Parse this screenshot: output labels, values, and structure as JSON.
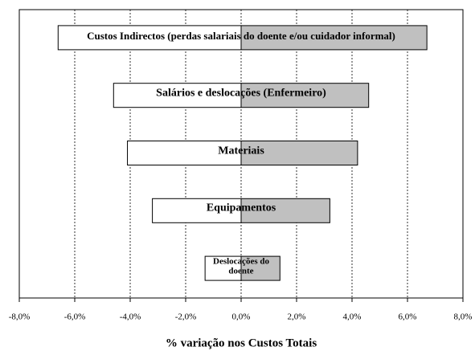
{
  "chart_data": {
    "type": "tornado",
    "categories": [
      "Custos Indirectos (perdas salariais do doente e/ou cuidador informal)",
      "Salários e deslocações (Enfermeiro)",
      "Materiais",
      "Equipamentos",
      "Deslocações do doente"
    ],
    "series": [
      {
        "color": "#ffffff",
        "values": [
          -6.6,
          -4.6,
          -4.1,
          -3.2,
          -1.3
        ]
      },
      {
        "color": "#c0c0c0",
        "values": [
          6.7,
          4.6,
          4.2,
          3.2,
          1.4
        ]
      }
    ],
    "xlim": [
      -8,
      8
    ],
    "xticks": [
      {
        "value": -8,
        "label": "-8,0%"
      },
      {
        "value": -6,
        "label": "-6,0%"
      },
      {
        "value": -4,
        "label": "-4,0%"
      },
      {
        "value": -2,
        "label": "-2,0%"
      },
      {
        "value": 0,
        "label": "0,0%"
      },
      {
        "value": 2,
        "label": "2,0%"
      },
      {
        "value": 4,
        "label": "4,0%"
      },
      {
        "value": 6,
        "label": "6,0%"
      },
      {
        "value": 8,
        "label": "8,0%"
      }
    ],
    "grid": true,
    "x_label": "% variação nos Custos Totais"
  }
}
